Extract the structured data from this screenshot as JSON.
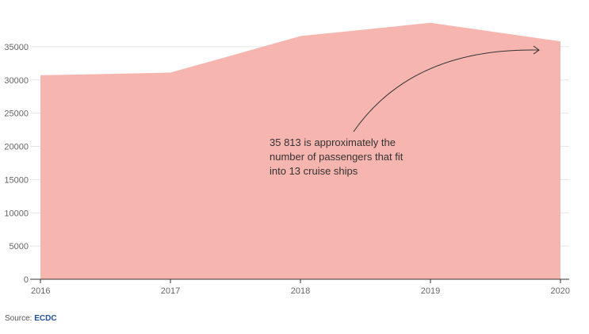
{
  "chart_data": {
    "type": "area",
    "title": "",
    "xlabel": "",
    "ylabel": "",
    "x": [
      "2016",
      "2017",
      "2018",
      "2019",
      "2020"
    ],
    "values": [
      30700,
      31100,
      36600,
      38600,
      35813
    ],
    "ylim": [
      0,
      40000
    ],
    "yticks": [
      0,
      5000,
      10000,
      15000,
      20000,
      25000,
      30000,
      35000
    ],
    "ytick_labels": [
      "0",
      "5000",
      "10000",
      "15000",
      "20000",
      "25000",
      "30000",
      "35000"
    ],
    "grid": true,
    "colors": {
      "area": "#f7b5b0",
      "grid": "#e6e6e6",
      "axis": "#333333",
      "arrow": "#333333"
    },
    "annotation": {
      "lines": [
        "35 813 is approximately the",
        "number of passengers that fit",
        "into 13 cruise ships"
      ],
      "target_x": "2020",
      "target_value": 34500
    }
  },
  "source": {
    "label": "Source: ",
    "name": "ECDC"
  }
}
